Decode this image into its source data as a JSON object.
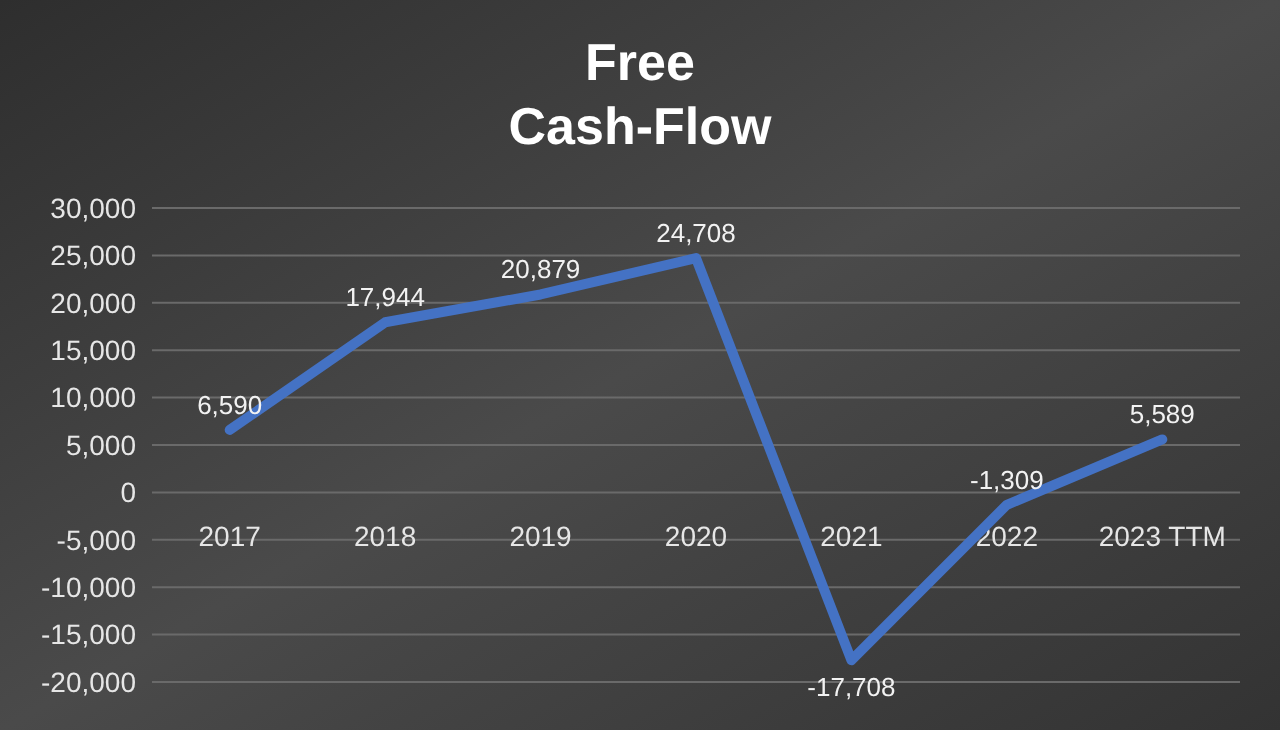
{
  "chart_data": {
    "type": "line",
    "title": "Free\nCash-Flow",
    "categories": [
      "2017",
      "2018",
      "2019",
      "2020",
      "2021",
      "2022",
      "2023 TTM"
    ],
    "series": [
      {
        "color": "#4472c4",
        "values": [
          6590,
          17944,
          20879,
          24708,
          -17708,
          -1309,
          5589
        ],
        "value_labels": [
          "6,590",
          "17,944",
          "20,879",
          "24,708",
          "-17,708",
          "-1,309",
          "5,589"
        ]
      }
    ],
    "ylim": [
      -20000,
      30000
    ],
    "yticks": [
      {
        "value": -20000,
        "label": "-20,000"
      },
      {
        "value": -15000,
        "label": "-15,000"
      },
      {
        "value": -10000,
        "label": "-10,000"
      },
      {
        "value": -5000,
        "label": "-5,000"
      },
      0,
      {
        "value": 5000,
        "label": "5,000"
      },
      {
        "value": 10000,
        "label": "10,000"
      },
      {
        "value": 15000,
        "label": "15,000"
      },
      {
        "value": 20000,
        "label": "20,000"
      },
      {
        "value": 25000,
        "label": "25,000"
      },
      {
        "value": 30000,
        "label": "30,000"
      }
    ],
    "grid": "y",
    "marker": "none",
    "line_style": "solid"
  }
}
